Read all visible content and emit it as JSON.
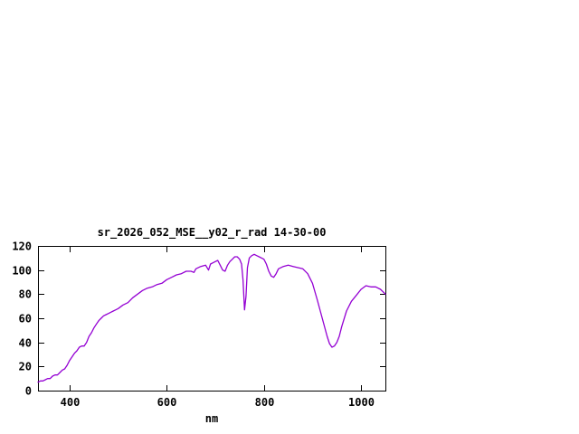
{
  "page": {
    "background": "#ffffff"
  },
  "chart_data": {
    "type": "line",
    "title": "sr_2026_052_MSE__y02_r_rad 14-30-00",
    "xlabel": "nm",
    "ylabel": "",
    "xlim": [
      335,
      1050
    ],
    "ylim": [
      0,
      120
    ],
    "xticks": [
      400,
      600,
      800,
      1000
    ],
    "yticks": [
      0,
      20,
      40,
      60,
      80,
      100,
      120
    ],
    "grid": false,
    "legend_position": "none",
    "line_color": "#9400d3",
    "border_color": "#000000",
    "x": [
      335,
      340,
      345,
      350,
      355,
      360,
      365,
      370,
      375,
      380,
      385,
      390,
      395,
      400,
      405,
      410,
      415,
      420,
      425,
      430,
      435,
      440,
      445,
      450,
      455,
      460,
      465,
      470,
      475,
      480,
      485,
      490,
      495,
      500,
      510,
      520,
      530,
      540,
      550,
      560,
      570,
      580,
      590,
      600,
      610,
      620,
      630,
      640,
      650,
      656,
      660,
      670,
      680,
      686,
      690,
      695,
      700,
      705,
      710,
      715,
      720,
      725,
      730,
      735,
      740,
      745,
      750,
      754,
      757,
      760,
      763,
      766,
      770,
      775,
      780,
      785,
      790,
      795,
      800,
      805,
      810,
      815,
      820,
      825,
      830,
      840,
      850,
      860,
      870,
      880,
      890,
      900,
      910,
      920,
      930,
      935,
      940,
      945,
      950,
      955,
      960,
      970,
      980,
      990,
      1000,
      1010,
      1020,
      1030,
      1040,
      1050
    ],
    "y": [
      7,
      8,
      8,
      9,
      10,
      10,
      12,
      13,
      13,
      15,
      17,
      18,
      21,
      25,
      28,
      31,
      33,
      36,
      37,
      37,
      40,
      45,
      48,
      52,
      55,
      58,
      60,
      62,
      63,
      64,
      65,
      66,
      67,
      68,
      71,
      73,
      77,
      80,
      83,
      85,
      86,
      88,
      89,
      92,
      94,
      96,
      97,
      99,
      99,
      98,
      101,
      103,
      104,
      100,
      105,
      106,
      107,
      108,
      104,
      100,
      99,
      104,
      107,
      109,
      111,
      111,
      109,
      105,
      92,
      67,
      78,
      102,
      110,
      112,
      113,
      112,
      111,
      110,
      109,
      105,
      99,
      95,
      94,
      97,
      101,
      103,
      104,
      103,
      102,
      101,
      97,
      89,
      75,
      60,
      45,
      39,
      36,
      37,
      40,
      45,
      53,
      66,
      74,
      79,
      84,
      87,
      86,
      86,
      84,
      80
    ]
  }
}
